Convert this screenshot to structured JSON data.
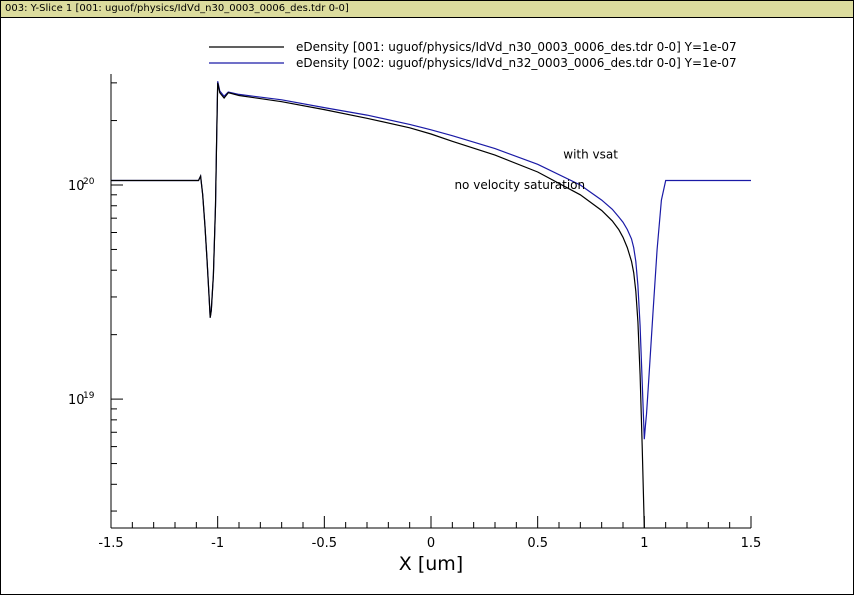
{
  "window": {
    "title": "003: Y-Slice 1 [001: uguof/physics/IdVd_n30_0003_0006_des.tdr 0-0]"
  },
  "chart_data": {
    "type": "line",
    "xlabel": "X [um]",
    "ylabel": "",
    "xlim": [
      -1.5,
      1.5
    ],
    "y_scale": "log",
    "ylim": [
      2.5e+18,
      3.3e+20
    ],
    "x_ticks": [
      "-1.5",
      "-1",
      "-0.5",
      "0",
      "0.5",
      "1",
      "1.5"
    ],
    "y_ticks": [
      {
        "base": "10",
        "exp": "20",
        "value": 1e+20
      },
      {
        "base": "10",
        "exp": "19",
        "value": 1e+19
      }
    ],
    "legend_position": "top-right",
    "annotations": [
      {
        "text": "with vsat",
        "x": 0.62,
        "y": 1.33e+20
      },
      {
        "text": "no velocity saturation",
        "x": 0.11,
        "y": 9.6e+19
      }
    ],
    "series": [
      {
        "name": "eDensity [001: uguof/physics/IdVd_n30_0003_0006_des.tdr 0-0] Y=1e-07",
        "color": "#000000",
        "x": [
          -1.5,
          -1.09,
          -1.08,
          -1.07,
          -1.06,
          -1.05,
          -1.04,
          -1.035,
          -1.03,
          -1.02,
          -1.01,
          -1.005,
          -1.0,
          -0.99,
          -0.97,
          -0.95,
          -0.9,
          -0.7,
          -0.5,
          -0.3,
          -0.1,
          0.0,
          0.1,
          0.3,
          0.5,
          0.7,
          0.8,
          0.85,
          0.88,
          0.9,
          0.92,
          0.94,
          0.95,
          0.96,
          0.97,
          0.98,
          0.99,
          0.995,
          1.0
        ],
        "y": [
          1.05e+20,
          1.05e+20,
          1.1e+20,
          9e+19,
          6.5e+19,
          4.5e+19,
          3e+19,
          2.4e+19,
          2.6e+19,
          3.8e+19,
          8e+19,
          1.6e+20,
          3e+20,
          2.7e+20,
          2.55e+20,
          2.7e+20,
          2.62e+20,
          2.45e+20,
          2.25e+20,
          2.05e+20,
          1.85e+20,
          1.73e+20,
          1.6e+20,
          1.38e+20,
          1.15e+20,
          9e+19,
          7.6e+19,
          6.8e+19,
          6.2e+19,
          5.7e+19,
          5.1e+19,
          4.4e+19,
          3.9e+19,
          3.2e+19,
          2.3e+19,
          1.3e+19,
          6e+18,
          3.8e+18,
          2.5e+18
        ]
      },
      {
        "name": "eDensity [002: uguof/physics/IdVd_n32_0003_0006_des.tdr 0-0] Y=1e-07",
        "color": "#1a1aa6",
        "x": [
          -1.5,
          -1.09,
          -1.08,
          -1.07,
          -1.06,
          -1.05,
          -1.04,
          -1.035,
          -1.03,
          -1.02,
          -1.01,
          -1.005,
          -1.0,
          -0.99,
          -0.97,
          -0.95,
          -0.9,
          -0.7,
          -0.5,
          -0.3,
          -0.1,
          0.0,
          0.1,
          0.3,
          0.5,
          0.7,
          0.8,
          0.85,
          0.88,
          0.9,
          0.92,
          0.94,
          0.95,
          0.96,
          0.97,
          0.98,
          0.99,
          1.0,
          1.005,
          1.01,
          1.02,
          1.04,
          1.06,
          1.08,
          1.1,
          1.5
        ],
        "y": [
          1.05e+20,
          1.05e+20,
          1.1e+20,
          9e+19,
          6.5e+19,
          4.5e+19,
          3e+19,
          2.4e+19,
          2.6e+19,
          3.8e+19,
          8e+19,
          1.6e+20,
          3.05e+20,
          2.75e+20,
          2.6e+20,
          2.72e+20,
          2.65e+20,
          2.5e+20,
          2.3e+20,
          2.12e+20,
          1.92e+20,
          1.81e+20,
          1.7e+20,
          1.48e+20,
          1.25e+20,
          1e+20,
          8.5e+19,
          7.7e+19,
          7.1e+19,
          6.7e+19,
          6.2e+19,
          5.6e+19,
          5.1e+19,
          4.4e+19,
          3.4e+19,
          2.2e+19,
          1.2e+19,
          6.5e+18,
          7.5e+18,
          8.5e+18,
          1.2e+19,
          2.5e+19,
          5e+19,
          8.5e+19,
          1.05e+20,
          1.05e+20
        ]
      }
    ]
  }
}
